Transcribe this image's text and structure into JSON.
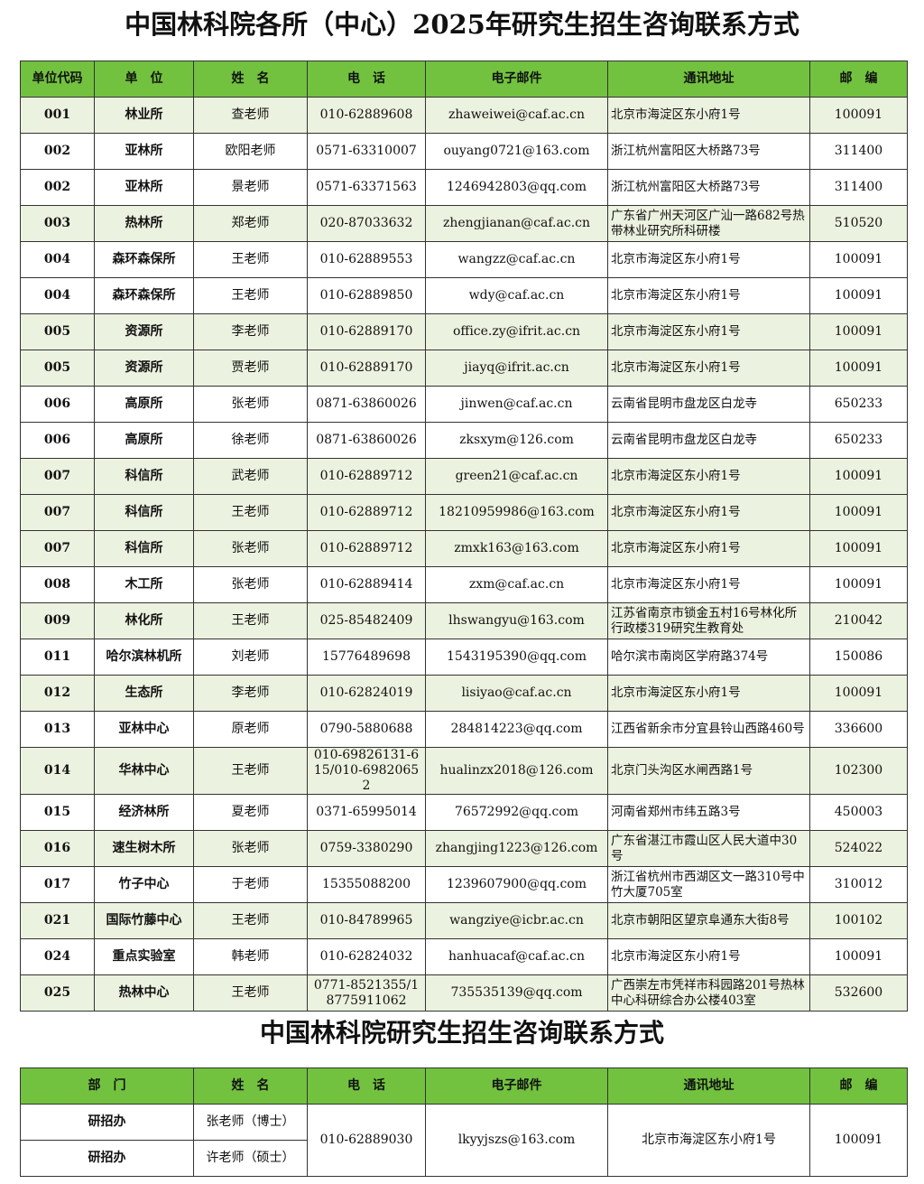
{
  "title": "中国林科院各所（中心）2025年研究生招生咨询联系方式",
  "table": {
    "headers": [
      "单位代码",
      "单　位",
      "姓　名",
      "电　话",
      "电子邮件",
      "通讯地址",
      "邮　编"
    ],
    "rows": [
      [
        "001",
        "林业所",
        "查老师",
        "010-62889608",
        "zhaweiwei@caf.ac.cn",
        "北京市海淀区东小府1号",
        "100091"
      ],
      [
        "002",
        "亚林所",
        "欧阳老师",
        "0571-63310007",
        "ouyang0721@163.com",
        "浙江杭州富阳区大桥路73号",
        "311400"
      ],
      [
        "002",
        "亚林所",
        "景老师",
        "0571-63371563",
        "1246942803@qq.com",
        "浙江杭州富阳区大桥路73号",
        "311400"
      ],
      [
        "003",
        "热林所",
        "郑老师",
        "020-87033632",
        "zhengjianan@caf.ac.cn",
        "广东省广州天河区广汕一路682号热带林业研究所科研楼",
        "510520"
      ],
      [
        "004",
        "森环森保所",
        "王老师",
        "010-62889553",
        "wangzz@caf.ac.cn",
        "北京市海淀区东小府1号",
        "100091"
      ],
      [
        "004",
        "森环森保所",
        "王老师",
        "010-62889850",
        "wdy@caf.ac.cn",
        "北京市海淀区东小府1号",
        "100091"
      ],
      [
        "005",
        "资源所",
        "李老师",
        "010-62889170",
        "office.zy@ifrit.ac.cn",
        "北京市海淀区东小府1号",
        "100091"
      ],
      [
        "005",
        "资源所",
        "贾老师",
        "010-62889170",
        "jiayq@ifrit.ac.cn",
        "北京市海淀区东小府1号",
        "100091"
      ],
      [
        "006",
        "高原所",
        "张老师",
        "0871-63860026",
        "jinwen@caf.ac.cn",
        "云南省昆明市盘龙区白龙寺",
        "650233"
      ],
      [
        "006",
        "高原所",
        "徐老师",
        "0871-63860026",
        "zksxym@126.com",
        "云南省昆明市盘龙区白龙寺",
        "650233"
      ],
      [
        "007",
        "科信所",
        "武老师",
        "010-62889712",
        "green21@caf.ac.cn",
        "北京市海淀区东小府1号",
        "100091"
      ],
      [
        "007",
        "科信所",
        "王老师",
        "010-62889712",
        "18210959986@163.com",
        "北京市海淀区东小府1号",
        "100091"
      ],
      [
        "007",
        "科信所",
        "张老师",
        "010-62889712",
        "zmxk163@163.com",
        "北京市海淀区东小府1号",
        "100091"
      ],
      [
        "008",
        "木工所",
        "张老师",
        "010-62889414",
        "zxm@caf.ac.cn",
        "北京市海淀区东小府1号",
        "100091"
      ],
      [
        "009",
        "林化所",
        "王老师",
        "025-85482409",
        "lhswangyu@163.com",
        "江苏省南京市锁金五村16号林化所行政楼319研究生教育处",
        "210042"
      ],
      [
        "011",
        "哈尔滨林机所",
        "刘老师",
        "15776489698",
        "1543195390@qq.com",
        "哈尔滨市南岗区学府路374号",
        "150086"
      ],
      [
        "012",
        "生态所",
        "李老师",
        "010-62824019",
        "lisiyao@caf.ac.cn",
        "北京市海淀区东小府1号",
        "100091"
      ],
      [
        "013",
        "亚林中心",
        "原老师",
        "0790-5880688",
        "284814223@qq.com",
        "江西省新余市分宜县铃山西路460号",
        "336600"
      ],
      [
        "014",
        "华林中心",
        "王老师",
        "010-69826131-615/010-69820652",
        "hualinzx2018@126.com",
        "北京门头沟区水闸西路1号",
        "102300"
      ],
      [
        "015",
        "经济林所",
        "夏老师",
        "0371-65995014",
        "76572992@qq.com",
        "河南省郑州市纬五路3号",
        "450003"
      ],
      [
        "016",
        "速生树木所",
        "张老师",
        "0759-3380290",
        "zhangjing1223@126.com",
        "广东省湛江市霞山区人民大道中30号",
        "524022"
      ],
      [
        "017",
        "竹子中心",
        "于老师",
        "15355088200",
        "1239607900@qq.com",
        "浙江省杭州市西湖区文一路310号中竹大厦705室",
        "310012"
      ],
      [
        "021",
        "国际竹藤中心",
        "王老师",
        "010-84789965",
        "wangziye@icbr.ac.cn",
        "北京市朝阳区望京阜通东大街8号",
        "100102"
      ],
      [
        "024",
        "重点实验室",
        "韩老师",
        "010-62824032",
        "hanhuacaf@caf.ac.cn",
        "北京市海淀区东小府1号",
        "100091"
      ],
      [
        "025",
        "热林中心",
        "王老师",
        "0771-8521355/18775911062",
        "735535139@qq.com",
        "广西崇左市凭祥市科园路201号热林中心科研综合办公楼403室",
        "532600"
      ]
    ]
  },
  "title2": "中国林科院研究生招生咨询联系方式",
  "table2": {
    "headers": [
      "部　门",
      "姓　名",
      "电　话",
      "电子邮件",
      "通讯地址",
      "邮　编"
    ],
    "rows": [
      [
        "研招办",
        "张老师（博士）",
        "010-62889030",
        "lkyyjszs@163.com",
        "北京市海淀区东小府1号",
        "100091"
      ],
      [
        "研招办",
        "许老师（硕士）"
      ]
    ]
  }
}
